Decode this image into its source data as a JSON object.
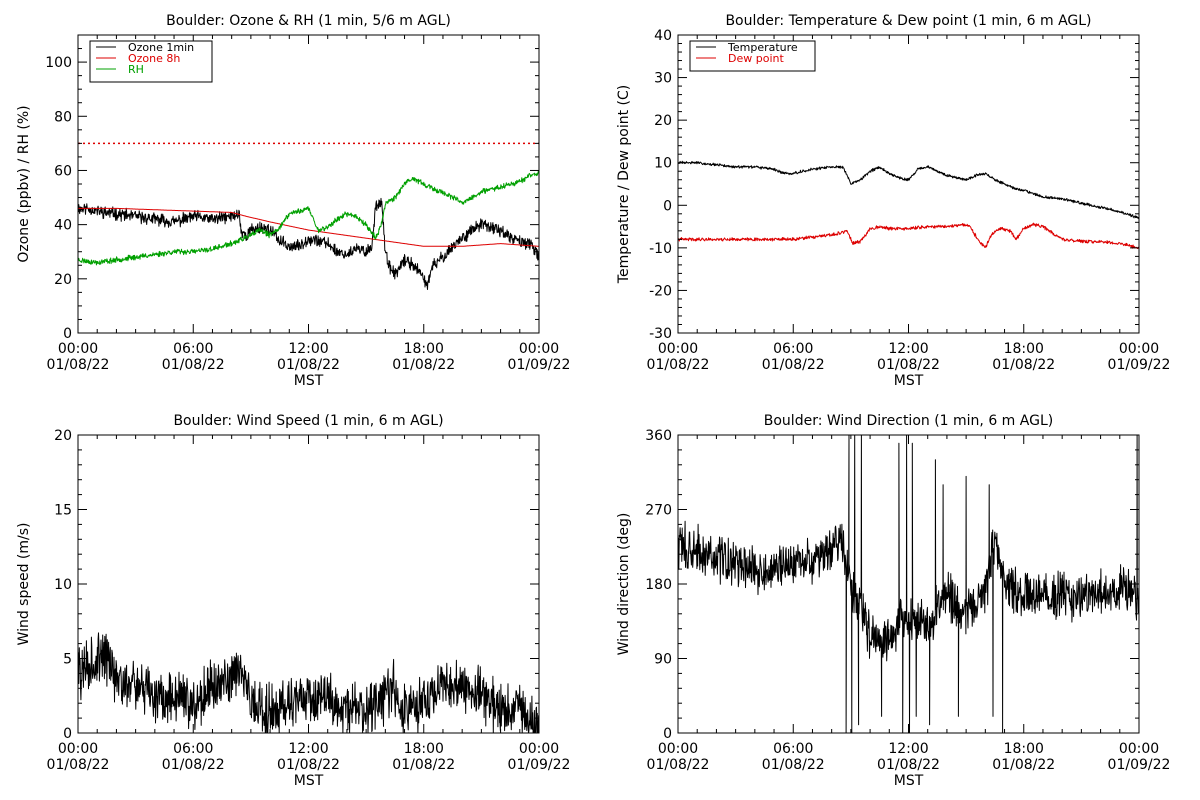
{
  "chart_data": [
    {
      "id": "ozone_rh",
      "type": "line",
      "title": "Boulder: Ozone & RH (1 min, 5/6 m AGL)",
      "xlabel": "MST",
      "ylabel": "Ozone (ppbv) / RH (%)",
      "xlim": [
        0,
        24
      ],
      "ylim": [
        0,
        110
      ],
      "x_ticks": [
        {
          "value": 0,
          "time": "00:00",
          "date": "01/08/22"
        },
        {
          "value": 6,
          "time": "06:00",
          "date": "01/08/22"
        },
        {
          "value": 12,
          "time": "12:00",
          "date": "01/08/22"
        },
        {
          "value": 18,
          "time": "18:00",
          "date": "01/08/22"
        },
        {
          "value": 24,
          "time": "00:00",
          "date": "01/09/22"
        }
      ],
      "y_ticks": [
        0,
        20,
        40,
        60,
        80,
        100
      ],
      "y_minor": 5,
      "legend_position": "top-left",
      "series": [
        {
          "name": "Ozone 1min",
          "color": "#000000",
          "noise": 1.8,
          "seed": 11,
          "x": [
            0,
            0.5,
            1,
            2,
            3,
            4,
            5,
            6,
            7,
            8,
            8.4,
            8.5,
            8.8,
            9,
            9.5,
            10,
            10.5,
            11,
            11.5,
            12,
            12.5,
            13,
            13.5,
            14,
            14.5,
            15,
            15.3,
            15.5,
            15.8,
            16,
            16.2,
            16.5,
            16.8,
            17,
            17.5,
            18,
            18.2,
            18.5,
            19,
            19.5,
            20,
            20.5,
            21,
            21.5,
            22,
            22.5,
            23,
            23.5,
            24
          ],
          "y": [
            46,
            46,
            45,
            44,
            43,
            42,
            41,
            43,
            42,
            43,
            44,
            37,
            36,
            38,
            39,
            38,
            34,
            32,
            32,
            35,
            34,
            33,
            30,
            29,
            31,
            30,
            32,
            47,
            49,
            30,
            24,
            22,
            24,
            27,
            25,
            20,
            18,
            25,
            28,
            32,
            35,
            38,
            40,
            39,
            38,
            35,
            34,
            33,
            28
          ]
        },
        {
          "name": "Ozone 8h",
          "color": "#dd0000",
          "noise": 0,
          "seed": 1,
          "x": [
            0,
            2,
            4,
            6,
            8,
            8.8,
            10,
            12,
            14,
            16,
            18,
            19,
            20,
            21,
            22,
            23,
            24
          ],
          "y": [
            46,
            46,
            45.5,
            45,
            44.5,
            43,
            41,
            38,
            36,
            34,
            32,
            32,
            32,
            32.5,
            33,
            32.5,
            32
          ]
        },
        {
          "name": "RH",
          "color": "#00a000",
          "noise": 0.8,
          "seed": 23,
          "x": [
            0,
            1,
            2,
            3,
            4,
            5,
            6,
            7,
            8,
            9,
            9.5,
            10,
            10.5,
            11,
            11.5,
            12,
            12.5,
            13,
            13.5,
            14,
            14.5,
            15,
            15.5,
            15.8,
            16,
            16.5,
            17,
            17.5,
            18,
            18.5,
            19,
            19.5,
            20,
            20.5,
            21,
            21.5,
            22,
            22.5,
            23,
            23.5,
            24
          ],
          "y": [
            27,
            26,
            27,
            28,
            29,
            30,
            30,
            31,
            33,
            36,
            38,
            36,
            39,
            44,
            45,
            46,
            38,
            39,
            42,
            44,
            43,
            40,
            35,
            40,
            48,
            50,
            55,
            57,
            55,
            53,
            52,
            50,
            48,
            50,
            52,
            53,
            54,
            55,
            56,
            58,
            59
          ]
        }
      ],
      "reference_lines": [
        {
          "y": 70,
          "color": "#dd0000",
          "style": "dotted"
        }
      ]
    },
    {
      "id": "temp_dew",
      "type": "line",
      "title": "Boulder: Temperature & Dew point (1 min, 6 m AGL)",
      "xlabel": "MST",
      "ylabel": "Temperature / Dew point (C)",
      "xlim": [
        0,
        24
      ],
      "ylim": [
        -30,
        40
      ],
      "x_ticks": [
        {
          "value": 0,
          "time": "00:00",
          "date": "01/08/22"
        },
        {
          "value": 6,
          "time": "06:00",
          "date": "01/08/22"
        },
        {
          "value": 12,
          "time": "12:00",
          "date": "01/08/22"
        },
        {
          "value": 18,
          "time": "18:00",
          "date": "01/08/22"
        },
        {
          "value": 24,
          "time": "00:00",
          "date": "01/09/22"
        }
      ],
      "y_ticks": [
        -30,
        -20,
        -10,
        0,
        10,
        20,
        30,
        40
      ],
      "y_minor": 2,
      "legend_position": "top-left",
      "series": [
        {
          "name": "Temperature",
          "color": "#000000",
          "noise": 0.25,
          "seed": 31,
          "x": [
            0,
            1,
            2,
            3,
            4,
            5,
            5.5,
            6,
            7,
            8,
            8.6,
            9,
            9.5,
            10,
            10.5,
            11,
            11.5,
            12,
            12.5,
            13,
            13.5,
            14,
            14.5,
            15,
            15.5,
            16,
            16.5,
            17,
            17.5,
            18,
            19,
            20,
            21,
            22,
            23,
            24
          ],
          "y": [
            10,
            10,
            9.5,
            9,
            9,
            8.5,
            7.5,
            7.5,
            8.5,
            9,
            9,
            5,
            6,
            8,
            9,
            7.5,
            6.5,
            6,
            8.5,
            9,
            8,
            7,
            6.5,
            6,
            7,
            7.5,
            6,
            5,
            4,
            3.5,
            2,
            1.5,
            0.5,
            -0.5,
            -1.5,
            -3
          ]
        },
        {
          "name": "Dew point",
          "color": "#dd0000",
          "noise": 0.3,
          "seed": 41,
          "x": [
            0,
            1,
            2,
            3,
            4,
            5,
            6,
            7,
            8,
            8.8,
            9.1,
            9.5,
            10,
            10.5,
            11,
            12,
            13,
            14,
            14.8,
            15.2,
            15.6,
            16,
            16.3,
            16.8,
            17.3,
            17.6,
            18,
            18.5,
            19,
            20,
            21,
            22,
            23,
            24
          ],
          "y": [
            -8,
            -8,
            -8,
            -8,
            -8,
            -8,
            -8,
            -7.5,
            -7,
            -6,
            -9,
            -8.5,
            -5.5,
            -5,
            -5.5,
            -5.5,
            -5,
            -5,
            -4.5,
            -5,
            -8,
            -10,
            -7,
            -5.5,
            -6,
            -8,
            -5.5,
            -4.5,
            -5,
            -8,
            -8.5,
            -8.5,
            -9,
            -10
          ]
        }
      ]
    },
    {
      "id": "wind_speed",
      "type": "line",
      "title": "Boulder: Wind Speed (1 min, 6 m AGL)",
      "xlabel": "MST",
      "ylabel": "Wind speed (m/s)",
      "xlim": [
        0,
        24
      ],
      "ylim": [
        0,
        20
      ],
      "x_ticks": [
        {
          "value": 0,
          "time": "00:00",
          "date": "01/08/22"
        },
        {
          "value": 6,
          "time": "06:00",
          "date": "01/08/22"
        },
        {
          "value": 12,
          "time": "12:00",
          "date": "01/08/22"
        },
        {
          "value": 18,
          "time": "18:00",
          "date": "01/08/22"
        },
        {
          "value": 24,
          "time": "00:00",
          "date": "01/09/22"
        }
      ],
      "y_ticks": [
        0,
        5,
        10,
        15,
        20
      ],
      "y_minor": 1,
      "series": [
        {
          "name": "",
          "color": "#000000",
          "noise": 1.4,
          "seed": 57,
          "x": [
            0,
            0.5,
            1,
            1.5,
            2,
            3,
            4,
            5,
            6,
            7,
            8,
            8.5,
            9,
            10,
            11,
            12,
            13,
            14,
            15,
            16,
            16.5,
            17,
            18,
            19,
            20,
            21,
            22,
            23,
            23.5,
            24
          ],
          "y": [
            4,
            4.5,
            5,
            5,
            3.5,
            3,
            2.5,
            2.5,
            2,
            3,
            4,
            4.5,
            2,
            1.5,
            2,
            2.5,
            2.5,
            1.5,
            1.5,
            2.5,
            3,
            1.5,
            2,
            3,
            3,
            2.5,
            1.5,
            1.5,
            1,
            0.5
          ]
        }
      ]
    },
    {
      "id": "wind_dir",
      "type": "line",
      "title": "Boulder: Wind Direction (1 min, 6 m AGL)",
      "xlabel": "MST",
      "ylabel": "Wind direction (deg)",
      "xlim": [
        0,
        24
      ],
      "ylim": [
        0,
        360
      ],
      "x_ticks": [
        {
          "value": 0,
          "time": "00:00",
          "date": "01/08/22"
        },
        {
          "value": 6,
          "time": "06:00",
          "date": "01/08/22"
        },
        {
          "value": 12,
          "time": "12:00",
          "date": "01/08/22"
        },
        {
          "value": 18,
          "time": "18:00",
          "date": "01/08/22"
        },
        {
          "value": 24,
          "time": "00:00",
          "date": "01/09/22"
        }
      ],
      "y_ticks": [
        0,
        90,
        180,
        270,
        360
      ],
      "y_minor": 18,
      "series": [
        {
          "name": "",
          "color": "#000000",
          "noise": 22,
          "seed": 73,
          "x": [
            0,
            1,
            2,
            3,
            4,
            5,
            6,
            7,
            8,
            8.5,
            9,
            9.5,
            10,
            10.5,
            11,
            12,
            13,
            14,
            15,
            16,
            16.5,
            17,
            18,
            19,
            20,
            21,
            22,
            23,
            24
          ],
          "y": [
            225,
            220,
            210,
            205,
            195,
            195,
            205,
            210,
            225,
            235,
            180,
            150,
            120,
            110,
            120,
            140,
            130,
            165,
            150,
            170,
            235,
            185,
            160,
            170,
            165,
            165,
            170,
            175,
            165
          ],
          "spikes": [
            [
              8.75,
              0
            ],
            [
              8.9,
              360
            ],
            [
              9.05,
              0
            ],
            [
              9.2,
              360
            ],
            [
              9.4,
              10
            ],
            [
              9.55,
              360
            ],
            [
              10.6,
              20
            ],
            [
              11.5,
              350
            ],
            [
              11.7,
              0
            ],
            [
              11.9,
              360
            ],
            [
              12.05,
              0
            ],
            [
              12.2,
              350
            ],
            [
              12.4,
              20
            ],
            [
              13.1,
              10
            ],
            [
              13.4,
              330
            ],
            [
              13.8,
              300
            ],
            [
              14.6,
              20
            ],
            [
              15.0,
              310
            ],
            [
              16.2,
              300
            ],
            [
              16.4,
              20
            ],
            [
              16.9,
              0
            ],
            [
              23.9,
              360
            ]
          ]
        }
      ]
    }
  ]
}
